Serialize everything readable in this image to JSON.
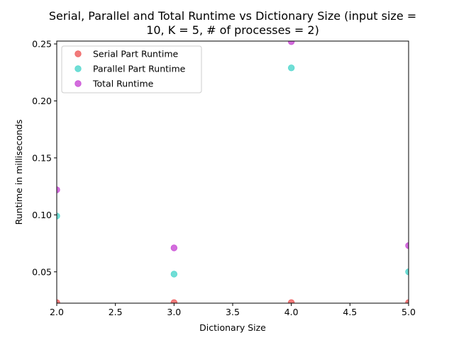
{
  "chart_data": {
    "type": "scatter",
    "title_lines": [
      "Serial, Parallel and Total Runtime vs Dictionary Size (input size =",
      "10, K = 5, # of processes = 2)"
    ],
    "xlabel": "Dictionary Size",
    "ylabel": "Runtime in milliseconds",
    "xlim": [
      2.0,
      5.0
    ],
    "ylim": [
      0.0225,
      0.2525
    ],
    "xticks": [
      2.0,
      2.5,
      3.0,
      3.5,
      4.0,
      4.5,
      5.0
    ],
    "xtick_labels": [
      "2.0",
      "2.5",
      "3.0",
      "3.5",
      "4.0",
      "4.5",
      "5.0"
    ],
    "yticks": [
      0.05,
      0.1,
      0.15,
      0.2,
      0.25
    ],
    "ytick_labels": [
      "0.05",
      "0.10",
      "0.15",
      "0.20",
      "0.25"
    ],
    "grid": false,
    "legend_position": "top-left",
    "series": [
      {
        "name": "Serial Part Runtime",
        "color": "#ee5a5a",
        "x": [
          2,
          3,
          4,
          5
        ],
        "y": [
          0.023,
          0.023,
          0.023,
          0.023
        ]
      },
      {
        "name": "Parallel Part Runtime",
        "color": "#4cd6cc",
        "x": [
          2,
          3,
          4,
          5
        ],
        "y": [
          0.099,
          0.048,
          0.229,
          0.05
        ]
      },
      {
        "name": "Total Runtime",
        "color": "#c848d4",
        "x": [
          2,
          3,
          4,
          5
        ],
        "y": [
          0.122,
          0.071,
          0.252,
          0.073
        ]
      }
    ]
  }
}
